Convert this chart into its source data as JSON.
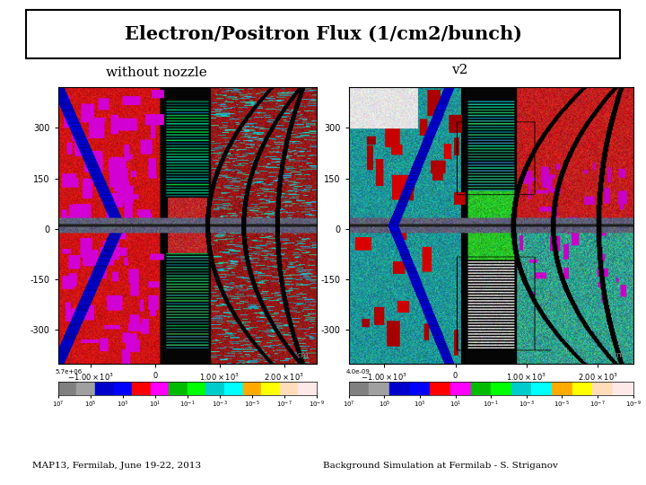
{
  "title_display": "Electron/Positron Flux (1/cm2/bunch)",
  "label_left": "without nozzle",
  "label_right": "v2",
  "footer_left": "MAP13, Fermilab, June 19-22, 2013",
  "footer_right": "Background Simulation at Fermilab - S. Striganov",
  "bg_color": "#ffffff",
  "figsize": [
    7.2,
    5.4
  ],
  "dpi": 100,
  "cbar_colors": [
    "#808080",
    "#a0a0a0",
    "#0000cc",
    "#0000ff",
    "#ff0000",
    "#ff00ff",
    "#00bb00",
    "#00ff00",
    "#00cccc",
    "#00ffff",
    "#ffaa00",
    "#ffff00",
    "#ffddbb",
    "#ffe8e8"
  ],
  "left_max": "5.7e+06",
  "right_max": "4.0e-09",
  "xtick_labels": [
    "-1.00x10$^3$",
    "0",
    "1.00x10$^3$",
    "2.00x10$^3$"
  ],
  "ytick_labels": [
    "300",
    "150",
    "0",
    "-150",
    "-300"
  ],
  "cbar_tick_labels": [
    "10$^7$",
    "10$^5$",
    "10$^3$",
    "10$^1$",
    "10$^{-1}$",
    "10$^{-3}$",
    "10$^{-5}$",
    "10$^{-7}$",
    "10$^{-9}$"
  ]
}
